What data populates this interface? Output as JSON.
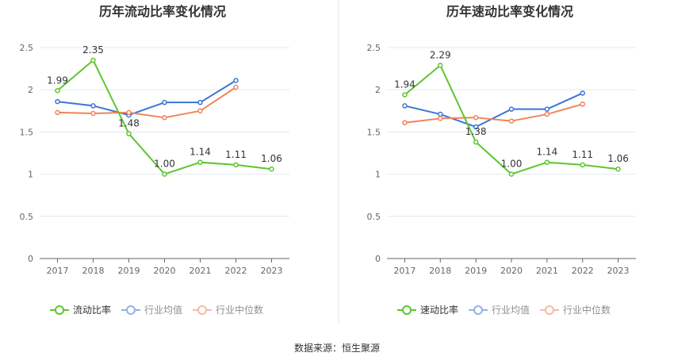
{
  "source_label": "数据来源：恒生聚源",
  "colors": {
    "company": "#5dc62f",
    "industry_avg": "#3a75d8",
    "industry_median": "#f0845a",
    "grid": "#e6e8ee",
    "axis": "#666666",
    "divider": "#e6e6e6"
  },
  "chart_data": [
    {
      "type": "line",
      "title": "历年流动比率变化情况",
      "categories": [
        "2017",
        "2018",
        "2019",
        "2020",
        "2021",
        "2022",
        "2023"
      ],
      "yticks": [
        "0",
        "0.5",
        "1",
        "1.5",
        "2",
        "2.5"
      ],
      "ylim": [
        0,
        2.5
      ],
      "grid": true,
      "legend_position": "bottom",
      "series": [
        {
          "name": "流动比率",
          "key": "company",
          "values": [
            1.99,
            2.35,
            1.48,
            1.0,
            1.14,
            1.11,
            1.06
          ],
          "labels": [
            "1.99",
            "2.35",
            "1.48",
            "1.00",
            "1.14",
            "1.11",
            "1.06"
          ]
        },
        {
          "name": "行业均值",
          "key": "industry_avg",
          "values": [
            1.86,
            1.81,
            1.7,
            1.85,
            1.85,
            2.11,
            null
          ]
        },
        {
          "name": "行业中位数",
          "key": "industry_median",
          "values": [
            1.73,
            1.72,
            1.73,
            1.67,
            1.75,
            2.03,
            null
          ]
        }
      ]
    },
    {
      "type": "line",
      "title": "历年速动比率变化情况",
      "categories": [
        "2017",
        "2018",
        "2019",
        "2020",
        "2021",
        "2022",
        "2023"
      ],
      "yticks": [
        "0",
        "0.5",
        "1",
        "1.5",
        "2",
        "2.5"
      ],
      "ylim": [
        0,
        2.5
      ],
      "grid": true,
      "legend_position": "bottom",
      "series": [
        {
          "name": "速动比率",
          "key": "company",
          "values": [
            1.94,
            2.29,
            1.38,
            1.0,
            1.14,
            1.11,
            1.06
          ],
          "labels": [
            "1.94",
            "2.29",
            "1.38",
            "1.00",
            "1.14",
            "1.11",
            "1.06"
          ]
        },
        {
          "name": "行业均值",
          "key": "industry_avg",
          "values": [
            1.81,
            1.71,
            1.56,
            1.77,
            1.77,
            1.96,
            null
          ]
        },
        {
          "name": "行业中位数",
          "key": "industry_median",
          "values": [
            1.61,
            1.66,
            1.67,
            1.63,
            1.71,
            1.83,
            null
          ]
        }
      ]
    }
  ]
}
